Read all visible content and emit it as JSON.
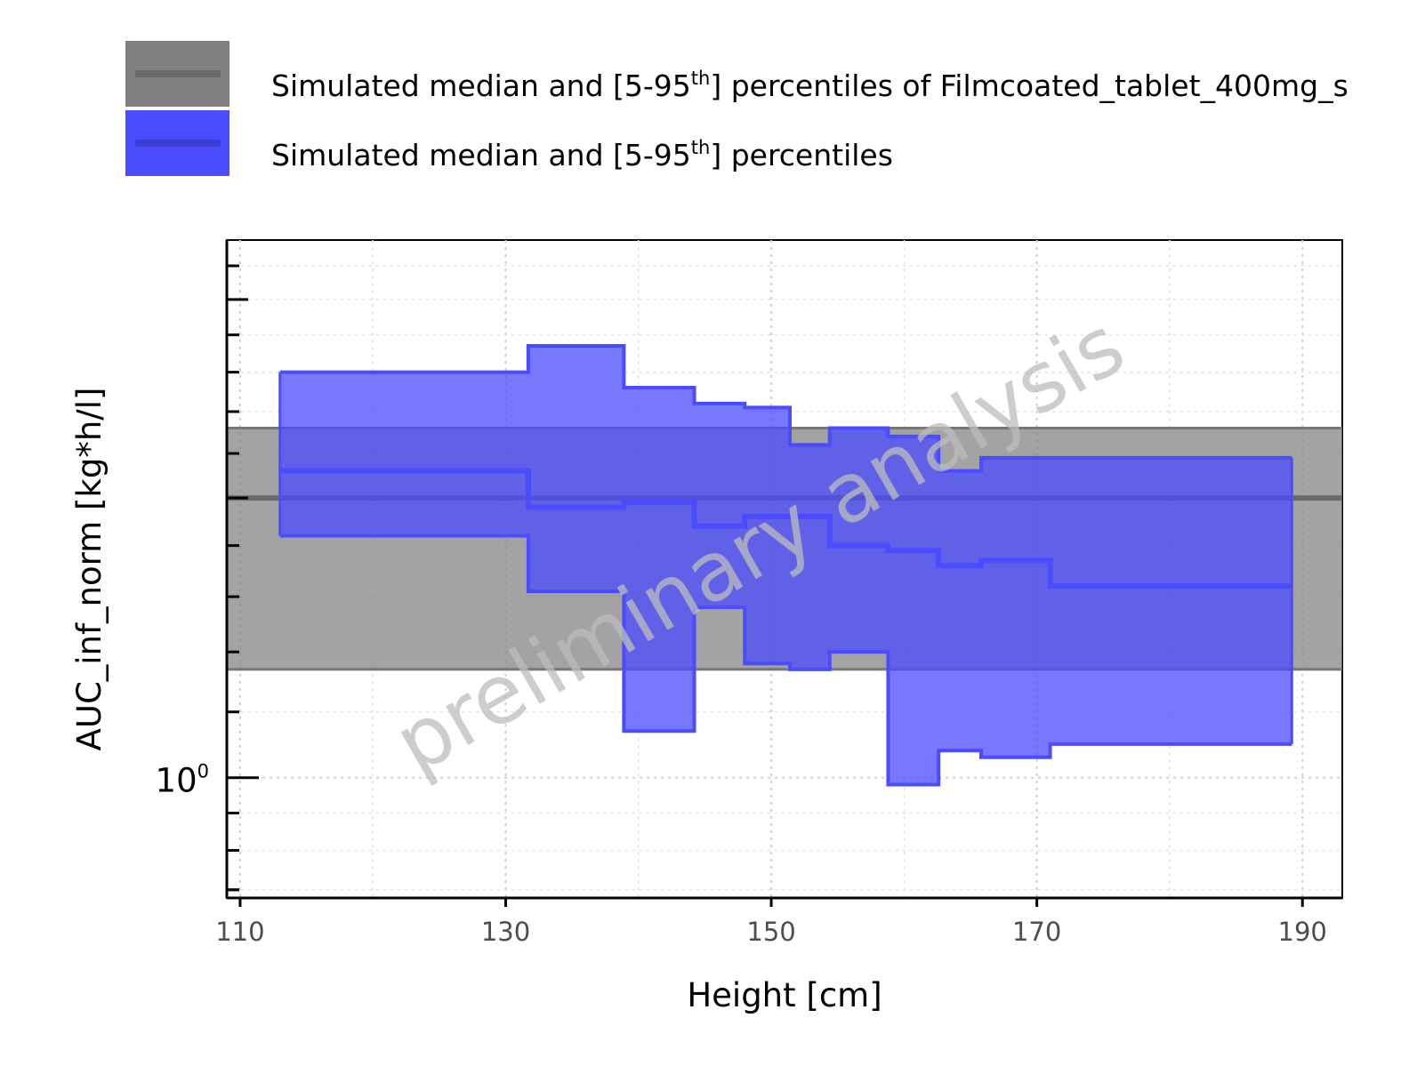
{
  "legend": {
    "items": [
      {
        "prefix": "Simulated median and [5-95",
        "sup": "th",
        "suffix": "] percentiles of Filmcoated_tablet_400mg_s",
        "color": "#7f7f7f"
      },
      {
        "prefix": "Simulated median and [5-95",
        "sup": "th",
        "suffix": "] percentiles",
        "color": "#4b4bff"
      }
    ]
  },
  "watermark": "preliminary analysis",
  "chart_data": {
    "type": "area",
    "xlabel": "Height [cm]",
    "ylabel": "AUC_inf_norm [kg*h/l]",
    "x_ticks": [
      110,
      130,
      150,
      170,
      190
    ],
    "xlim": [
      109,
      193
    ],
    "y_scale": "log",
    "y_tick_label": {
      "base": "10",
      "exponent": "0",
      "value": 1.0
    },
    "ylim": [
      0.84,
      2.18
    ],
    "grid": true,
    "reference_band": {
      "name": "Simulated median and [5-95th] percentiles of Filmcoated_tablet_400mg_s",
      "color": "#7f7f7f",
      "median": 1.5,
      "p5": 1.17,
      "p95": 1.66
    },
    "series": [
      {
        "name": "Simulated median and [5-95th] percentiles",
        "color": "#4b4bff",
        "bins": [
          {
            "x_start": 113,
            "x_end": 131.7,
            "p5": 1.42,
            "median": 1.56,
            "p95": 1.8
          },
          {
            "x_start": 131.7,
            "x_end": 138.9,
            "p5": 1.31,
            "median": 1.48,
            "p95": 1.87
          },
          {
            "x_start": 138.9,
            "x_end": 144.2,
            "p5": 1.07,
            "median": 1.49,
            "p95": 1.76
          },
          {
            "x_start": 144.2,
            "x_end": 148.0,
            "p5": 1.28,
            "median": 1.44,
            "p95": 1.72
          },
          {
            "x_start": 148.0,
            "x_end": 151.4,
            "p5": 1.18,
            "median": 1.46,
            "p95": 1.71
          },
          {
            "x_start": 151.4,
            "x_end": 154.4,
            "p5": 1.17,
            "median": 1.46,
            "p95": 1.62
          },
          {
            "x_start": 154.4,
            "x_end": 158.8,
            "p5": 1.2,
            "median": 1.4,
            "p95": 1.66
          },
          {
            "x_start": 158.8,
            "x_end": 162.6,
            "p5": 0.99,
            "median": 1.39,
            "p95": 1.64
          },
          {
            "x_start": 162.6,
            "x_end": 165.8,
            "p5": 1.04,
            "median": 1.36,
            "p95": 1.56
          },
          {
            "x_start": 165.8,
            "x_end": 171.0,
            "p5": 1.03,
            "median": 1.37,
            "p95": 1.59
          },
          {
            "x_start": 171.0,
            "x_end": 189.2,
            "p5": 1.05,
            "median": 1.32,
            "p95": 1.59
          }
        ]
      }
    ]
  }
}
